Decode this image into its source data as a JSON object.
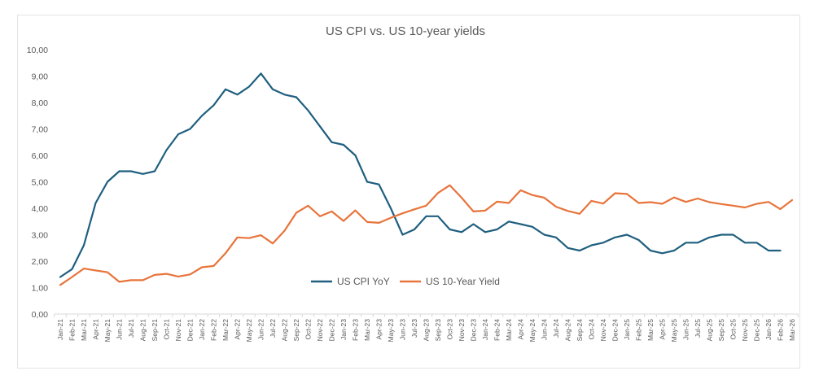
{
  "chart_data": {
    "type": "line",
    "title": "US CPI vs. US 10-year yields",
    "xlabel": "",
    "ylabel": "",
    "ylim": [
      0,
      10
    ],
    "yticks": [
      "0,00",
      "1,00",
      "2,00",
      "3,00",
      "4,00",
      "5,00",
      "6,00",
      "7,00",
      "8,00",
      "9,00",
      "10,00"
    ],
    "grid": false,
    "legend_position": "bottom-center",
    "x": [
      "Jan-21",
      "Feb-21",
      "Mar-21",
      "Apr-21",
      "May-21",
      "Jun-21",
      "Jul-21",
      "Aug-21",
      "Sep-21",
      "Oct-21",
      "Nov-21",
      "Dec-21",
      "Jan-22",
      "Feb-22",
      "Mar-22",
      "Apr-22",
      "May-22",
      "Jun-22",
      "Jul-22",
      "Aug-22",
      "Sep-22",
      "Oct-22",
      "Nov-22",
      "Dec-22",
      "Jan-23",
      "Feb-23",
      "Mar-23",
      "Apr-23",
      "May-23",
      "Jun-23",
      "Jul-23",
      "Aug-23",
      "Sep-23",
      "Oct-23",
      "Nov-23",
      "Dec-23",
      "Jan-24",
      "Feb-24",
      "Mar-24",
      "Apr-24",
      "May-24",
      "Jun-24",
      "Jul-24",
      "Aug-24",
      "Sep-24",
      "Oct-24",
      "Nov-24",
      "Dec-24",
      "Jan-25",
      "Feb-25",
      "Mar-25",
      "Apr-25",
      "May-25",
      "Jun-25",
      "Jul-25",
      "Aug-25",
      "Sep-25",
      "Oct-25",
      "Nov-25",
      "Dec-25",
      "Jan-26",
      "Feb-26",
      "Mar-26"
    ],
    "series": [
      {
        "name": "US CPI YoY",
        "color": "#1f5f7f",
        "values": [
          1.4,
          1.7,
          2.6,
          4.2,
          5.0,
          5.4,
          5.4,
          5.3,
          5.4,
          6.2,
          6.8,
          7.0,
          7.5,
          7.9,
          8.5,
          8.3,
          8.6,
          9.1,
          8.5,
          8.3,
          8.2,
          7.7,
          7.1,
          6.5,
          6.4,
          6.0,
          5.0,
          4.9,
          4.0,
          3.0,
          3.2,
          3.7,
          3.7,
          3.2,
          3.1,
          3.4,
          3.1,
          3.2,
          3.5,
          3.4,
          3.3,
          3.0,
          2.9,
          2.5,
          2.4,
          2.6,
          2.7,
          2.9,
          3.0,
          2.8,
          2.4,
          2.3,
          2.4,
          2.7,
          2.7,
          2.9,
          3.0,
          3.0,
          2.7,
          2.7,
          2.4,
          2.4,
          null
        ]
      },
      {
        "name": "US 10-Year Yield",
        "color": "#e8743b",
        "values": [
          1.1,
          1.4,
          1.72,
          1.65,
          1.58,
          1.22,
          1.28,
          1.28,
          1.48,
          1.52,
          1.42,
          1.5,
          1.77,
          1.82,
          2.3,
          2.9,
          2.87,
          2.98,
          2.67,
          3.15,
          3.83,
          4.1,
          3.7,
          3.88,
          3.52,
          3.92,
          3.48,
          3.45,
          3.64,
          3.81,
          3.96,
          4.1,
          4.58,
          4.87,
          4.4,
          3.88,
          3.91,
          4.25,
          4.2,
          4.68,
          4.5,
          4.4,
          4.06,
          3.9,
          3.79,
          4.28,
          4.18,
          4.57,
          4.54,
          4.2,
          4.23,
          4.17,
          4.41,
          4.24,
          4.37,
          4.23,
          4.16,
          4.1,
          4.03,
          4.17,
          4.24,
          3.97,
          4.31
        ]
      }
    ]
  }
}
